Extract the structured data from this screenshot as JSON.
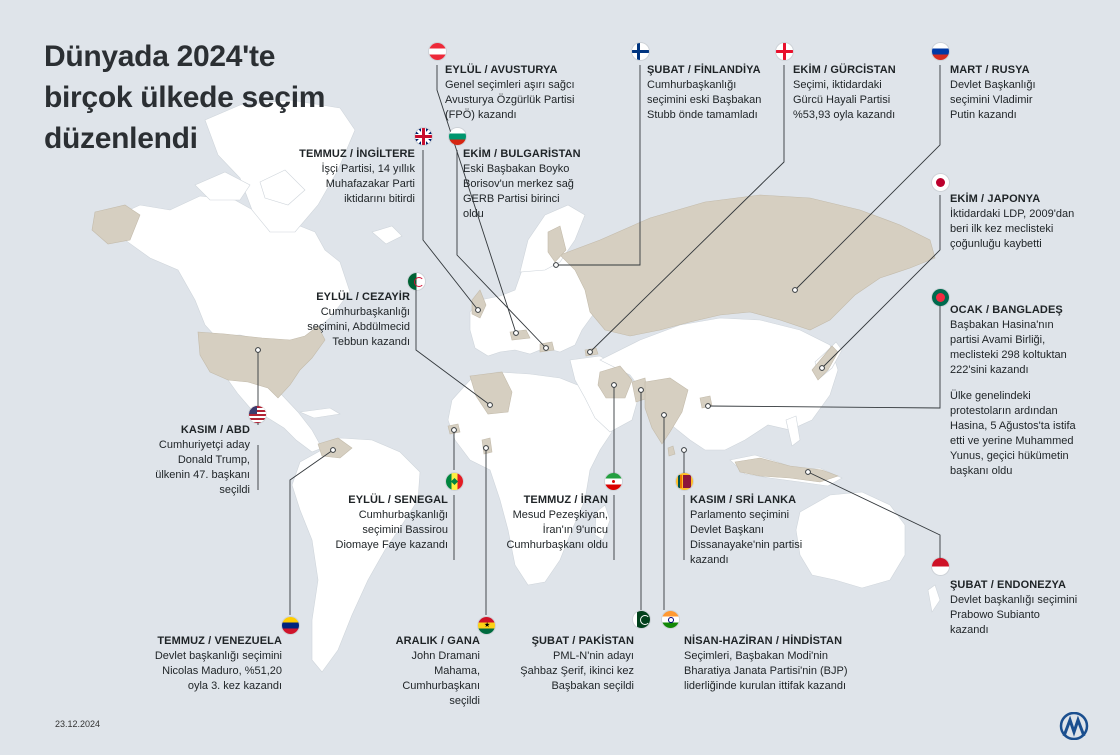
{
  "title": [
    "Dünyada 2024'te",
    "birçok ülkede seçim",
    "düzenlendi"
  ],
  "date": "23.12.2024",
  "logo": "AA",
  "colors": {
    "ocean": "#dfe4ea",
    "land": "#ffffff",
    "highlight": "#d6cfc1",
    "line": "#33383c"
  },
  "elections": [
    {
      "id": "austria",
      "heading": "EYLÜL / AVUSTURYA",
      "body": "Genel seçimleri aşırı sağcı Avusturya Özgürlük Partisi (FPÖ) kazandı",
      "flag": "austria-flag"
    },
    {
      "id": "finland",
      "heading": "ŞUBAT / FİNLANDİYA",
      "body": "Cumhurbaşkanlığı seçimini eski Başbakan Stubb önde tamamladı",
      "flag": "finland-flag"
    },
    {
      "id": "georgia",
      "heading": "EKİM / GÜRCİSTAN",
      "body": "Seçimi, iktidardaki Gürcü Hayali Partisi %53,93 oyla kazandı",
      "flag": "georgia-flag"
    },
    {
      "id": "russia",
      "heading": "MART / RUSYA",
      "body": "Devlet Başkanlığı seçimini Vladimir Putin kazandı",
      "flag": "russia-flag"
    },
    {
      "id": "uk",
      "heading": "TEMMUZ / İNGİLTERE",
      "body": "İşçi Partisi, 14 yıllık Muhafazakar Parti iktidarını bitirdi",
      "flag": "uk-flag"
    },
    {
      "id": "bulgaria",
      "heading": "EKİM / BULGARİSTAN",
      "body": "Eski Başbakan Boyko Borisov'un merkez sağ GERB Partisi birinci oldu",
      "flag": "bulgaria-flag"
    },
    {
      "id": "japan",
      "heading": "EKİM / JAPONYA",
      "body": "İktidardaki LDP, 2009'dan beri ilk kez meclisteki çoğunluğu kaybetti",
      "flag": "japan-flag"
    },
    {
      "id": "algeria",
      "heading": "EYLÜL / CEZAYİR",
      "body": "Cumhurbaşkanlığı seçimini, Abdülmecid Tebbun kazandı",
      "flag": "algeria-flag"
    },
    {
      "id": "bangladesh",
      "heading": "OCAK / BANGLADEŞ",
      "body": "Başbakan Hasina'nın partisi Avami Birliği, meclisteki 298 koltuktan 222'sini kazandı",
      "body2": "Ülke genelindeki protestoların ardından Hasina, 5 Ağustos'ta istifa etti ve yerine Muhammed Yunus, geçici hükümetin başkanı oldu",
      "flag": "bangladesh-flag"
    },
    {
      "id": "usa",
      "heading": "KASIM / ABD",
      "body": "Cumhuriyetçi aday Donald Trump, ülkenin 47. başkanı seçildi",
      "flag": "usa-flag"
    },
    {
      "id": "senegal",
      "heading": "EYLÜL / SENEGAL",
      "body": "Cumhurbaşkanlığı seçimini Bassirou Diomaye Faye kazandı",
      "flag": "senegal-flag"
    },
    {
      "id": "iran",
      "heading": "TEMMUZ / İRAN",
      "body": "Mesud Pezeşkiyan, İran'ın 9'uncu Cumhurbaşkanı oldu",
      "flag": "iran-flag"
    },
    {
      "id": "srilanka",
      "heading": "KASIM / SRİ LANKA",
      "body": "Parlamento seçimini Devlet Başkanı Dissanayake'nin partisi kazandı",
      "flag": "sri-lanka-flag"
    },
    {
      "id": "indonesia",
      "heading": "ŞUBAT / ENDONEZYA",
      "body": "Devlet başkanlığı seçimini Prabowo Subianto kazandı",
      "flag": "indonesia-flag"
    },
    {
      "id": "venezuela",
      "heading": "TEMMUZ / VENEZUELA",
      "body": "Devlet başkanlığı seçimini Nicolas Maduro, %51,20 oyla 3. kez kazandı",
      "flag": "venezuela-flag"
    },
    {
      "id": "ghana",
      "heading": "ARALIK / GANA",
      "body": "John Dramani Mahama, Cumhurbaşkanı seçildi",
      "flag": "ghana-flag"
    },
    {
      "id": "pakistan",
      "heading": "ŞUBAT / PAKİSTAN",
      "body": "PML-N'nin adayı Şahbaz Şerif, ikinci kez Başbakan seçildi",
      "flag": "pakistan-flag"
    },
    {
      "id": "india",
      "heading": "NİSAN-HAZİRAN / HİNDİSTAN",
      "body": "Seçimleri, Başbakan Modi'nin Bharatiya Janata Partisi'nin (BJP) liderliğinde kurulan ittifak kazandı",
      "flag": "india-flag"
    }
  ]
}
